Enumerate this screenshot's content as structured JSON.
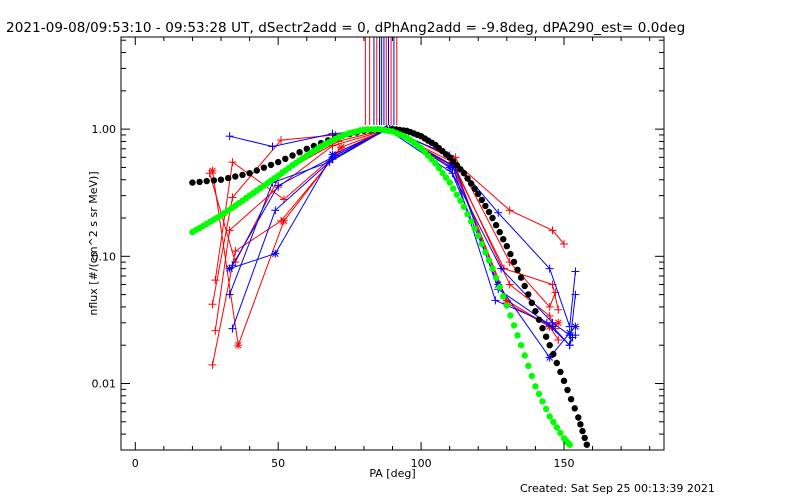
{
  "title": "2021-09-08/09:53:10 - 09:53:28 UT, dSectr2add = 0, dPhAng2add = -9.8deg, dPA290_est=  0.0deg",
  "footer": "Created: Sat Sep 25 00:13:39 2021",
  "chart_data": {
    "type": "scatter",
    "xlabel": "PA [deg]",
    "ylabel": "nflux [#/(cm^2 s sr MeV)]",
    "xlim": [
      -5,
      185
    ],
    "ylim": [
      0.003,
      5.3
    ],
    "yscale": "log",
    "xticks": [
      0,
      50,
      100,
      150
    ],
    "yticks": [
      0.01,
      0.1,
      1.0
    ],
    "ytick_labels": [
      "0.01",
      "0.10",
      "1.00"
    ],
    "grid": false,
    "colors": {
      "red": "#ff0000",
      "blue": "#0000ff",
      "green": "#00ff00",
      "black": "#000000"
    },
    "vertical_markers": [
      {
        "x": 80.5,
        "color": "#ff0000"
      },
      {
        "x": 82.0,
        "color": "#ff0000"
      },
      {
        "x": 83.5,
        "color": "#0000ff"
      },
      {
        "x": 84.5,
        "color": "#ff0000"
      },
      {
        "x": 85.5,
        "color": "#000000"
      },
      {
        "x": 86.2,
        "color": "#0000ff"
      },
      {
        "x": 87.0,
        "color": "#0000ff"
      },
      {
        "x": 87.8,
        "color": "#ff0000"
      },
      {
        "x": 88.6,
        "color": "#0000ff"
      },
      {
        "x": 89.5,
        "color": "#ff0000"
      },
      {
        "x": 90.5,
        "color": "#0000ff"
      },
      {
        "x": 91.5,
        "color": "#ff0000"
      }
    ],
    "series": [
      {
        "color": "#ff0000",
        "marker": "plus",
        "x": [
          27,
          35,
          51,
          70,
          88,
          111,
          130,
          145,
          148
        ],
        "y": [
          0.014,
          0.11,
          0.19,
          0.62,
          1.0,
          0.55,
          0.045,
          0.028,
          0.022
        ]
      },
      {
        "color": "#ff0000",
        "marker": "plus",
        "x": [
          28,
          33,
          50,
          69,
          89,
          112,
          129,
          146,
          148
        ],
        "y": [
          0.026,
          0.16,
          0.35,
          0.74,
          1.0,
          0.48,
          0.08,
          0.06,
          0.038
        ]
      },
      {
        "color": "#ff0000",
        "marker": "plus",
        "x": [
          27,
          34,
          51,
          70,
          90,
          110,
          131,
          146,
          150
        ],
        "y": [
          0.042,
          0.29,
          0.82,
          0.9,
          1.0,
          0.6,
          0.23,
          0.16,
          0.125
        ]
      },
      {
        "color": "#ff0000",
        "marker": "plus",
        "x": [
          28,
          34,
          52,
          71,
          88,
          112,
          131,
          145,
          147
        ],
        "y": [
          0.065,
          0.55,
          0.28,
          0.66,
          1.0,
          0.6,
          0.09,
          0.04,
          0.052
        ]
      },
      {
        "color": "#ff0000",
        "marker": "star",
        "x": [
          27,
          36,
          52,
          72,
          89,
          111,
          130,
          145,
          148
        ],
        "y": [
          0.47,
          0.02,
          0.19,
          0.72,
          1.0,
          0.52,
          0.043,
          0.028,
          0.03
        ]
      },
      {
        "color": "#ff0000",
        "marker": "plus",
        "x": [
          26,
          35,
          51,
          71,
          88,
          112,
          131,
          145,
          147
        ],
        "y": [
          0.45,
          0.09,
          0.45,
          0.8,
          1.0,
          0.5,
          0.06,
          0.034,
          0.027
        ]
      },
      {
        "color": "#0000ff",
        "marker": "plus",
        "x": [
          33,
          48,
          69,
          89,
          110,
          127,
          145,
          152,
          154
        ],
        "y": [
          0.88,
          0.73,
          0.92,
          1.0,
          0.62,
          0.22,
          0.08,
          0.028,
          0.076
        ]
      },
      {
        "color": "#0000ff",
        "marker": "plus",
        "x": [
          34,
          49,
          69,
          88,
          111,
          126,
          144,
          152,
          154
        ],
        "y": [
          0.027,
          0.23,
          0.58,
          1.0,
          0.52,
          0.045,
          0.03,
          0.02,
          0.05
        ]
      },
      {
        "color": "#0000ff",
        "marker": "star",
        "x": [
          33,
          49,
          69,
          89,
          110,
          127,
          145,
          152,
          154
        ],
        "y": [
          0.08,
          0.105,
          0.63,
          1.0,
          0.5,
          0.06,
          0.016,
          0.025,
          0.028
        ]
      },
      {
        "color": "#0000ff",
        "marker": "plus",
        "x": [
          33,
          48,
          68,
          88,
          111,
          128,
          146,
          152,
          154
        ],
        "y": [
          0.05,
          0.38,
          0.55,
          1.0,
          0.45,
          0.08,
          0.03,
          0.024,
          0.024
        ]
      },
      {
        "color": "#0000ff",
        "marker": "plus",
        "x": [
          34,
          50,
          69,
          88,
          112,
          127,
          146,
          152,
          153
        ],
        "y": [
          0.085,
          0.36,
          0.6,
          1.0,
          0.5,
          0.055,
          0.028,
          0.02,
          0.023
        ]
      }
    ],
    "fits": [
      {
        "color": "#000000",
        "x": [
          20,
          30,
          40,
          50,
          60,
          70,
          80,
          90,
          95,
          100,
          105,
          110,
          115,
          120,
          125,
          130,
          135,
          140,
          145,
          150,
          155,
          158
        ],
        "y": [
          0.38,
          0.4,
          0.45,
          0.55,
          0.7,
          0.86,
          0.97,
          1.0,
          0.97,
          0.88,
          0.75,
          0.6,
          0.45,
          0.31,
          0.2,
          0.12,
          0.068,
          0.037,
          0.02,
          0.0105,
          0.0054,
          0.0033
        ]
      },
      {
        "color": "#00ff00",
        "x": [
          20,
          25,
          30,
          35,
          40,
          45,
          50,
          55,
          60,
          65,
          70,
          75,
          80,
          85,
          90,
          95,
          100,
          105,
          110,
          115,
          120,
          125,
          130,
          135,
          140,
          145,
          150,
          152
        ],
        "y": [
          0.155,
          0.18,
          0.21,
          0.25,
          0.3,
          0.36,
          0.43,
          0.52,
          0.62,
          0.73,
          0.84,
          0.93,
          0.99,
          1.0,
          0.96,
          0.86,
          0.71,
          0.54,
          0.38,
          0.245,
          0.145,
          0.08,
          0.041,
          0.02,
          0.0095,
          0.0055,
          0.0037,
          0.0033
        ]
      }
    ]
  }
}
